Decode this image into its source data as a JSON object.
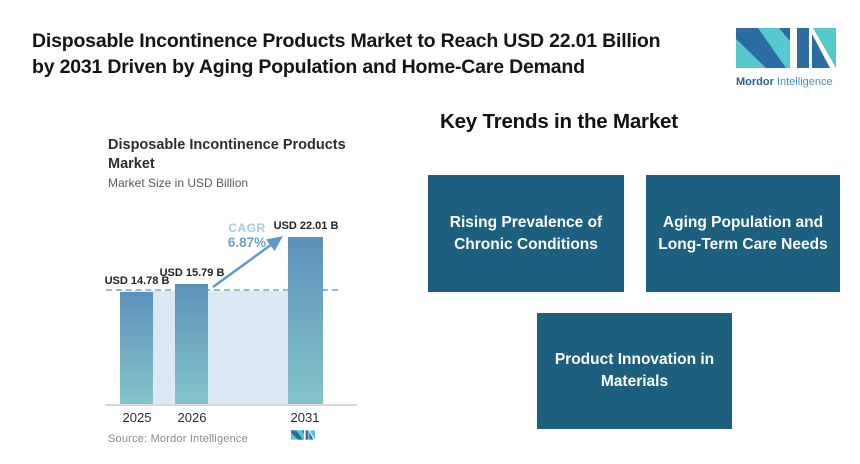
{
  "header": {
    "headline_line1": "Disposable Incontinence Products Market to Reach USD 22.01 Billion",
    "headline_line2": "by 2031 Driven by Aging Population and Home-Care Demand",
    "brand": {
      "word1": "Mordor",
      "word2": "Intelligence"
    }
  },
  "chart_data": {
    "type": "bar",
    "title": "Disposable Incontinence Products Market",
    "title_line1": "Disposable Incontinence Products",
    "title_line2": "Market",
    "subtitle": "Market Size in USD Billion",
    "categories": [
      "2025",
      "2026",
      "2031"
    ],
    "values": [
      14.78,
      15.79,
      22.01
    ],
    "bar_labels": [
      "USD 14.78 B",
      "USD 15.79 B",
      "USD 22.01 B"
    ],
    "ylabel": "Market Size in USD Billion",
    "ylim": [
      0,
      24
    ],
    "grid": false,
    "reference_line_value": 14.78,
    "cagr": {
      "label": "CAGR",
      "value": "6.87%"
    },
    "source": "Source: Mordor Intelligence"
  },
  "trends": {
    "heading": "Key Trends in the Market",
    "boxes": [
      {
        "label": "Rising Prevalence of Chronic Conditions"
      },
      {
        "label": "Aging Population and Long-Term Care Needs"
      },
      {
        "label": "Product Innovation in Materials"
      }
    ]
  },
  "colors": {
    "trend_box_teal": "#1d5f7f",
    "bar_gradient_top": "#5d91ba",
    "bar_gradient_bottom": "#84c5c9",
    "band_blue": "#dbe7f1",
    "dashed_line_blue": "#94bbd9",
    "arrow_blue": "#5e97c8",
    "cagr_label_blue": "#a8c9e4",
    "cagr_value_blue": "#6fa0cd",
    "logo_dark_blue": "#2d6ca3",
    "logo_teal": "#56c9cf",
    "brand_mordor_blue": "#2c5f8a",
    "brand_intelligence_blue": "#4b90c3"
  }
}
